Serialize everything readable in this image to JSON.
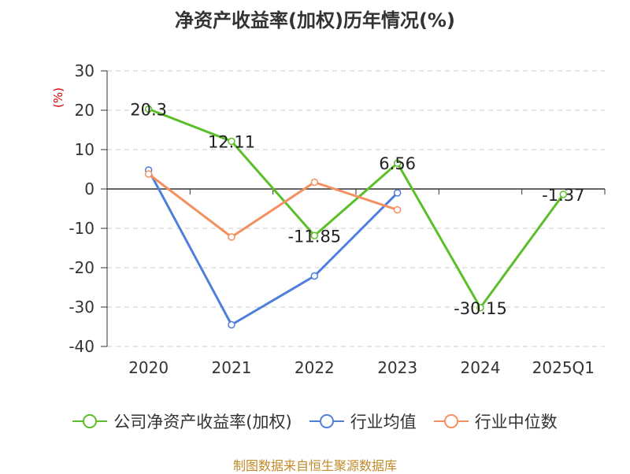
{
  "title": "净资产收益率(加权)历年情况(%)",
  "y_unit": "(%)",
  "source": "制图数据来自恒生聚源数据库",
  "colors": {
    "company": "#5bbf2a",
    "industry_avg": "#4e7fdc",
    "industry_median": "#f4905f",
    "axis": "#333333",
    "grid": "#cccccc",
    "unit": "#d40000",
    "source": "#c08a2a"
  },
  "chart_data": {
    "type": "line",
    "categories": [
      "2020",
      "2021",
      "2022",
      "2023",
      "2024",
      "2025Q1"
    ],
    "ylim": [
      -40,
      30
    ],
    "yticks": [
      30,
      20,
      10,
      0,
      -10,
      -20,
      -30,
      -40
    ],
    "ytick_labels": [
      "30",
      "20",
      "10",
      "0",
      "-10",
      "-20",
      "-30",
      "-40"
    ],
    "grid": true,
    "legend_position": "bottom",
    "series": [
      {
        "name": "公司净资产收益率(加权)",
        "values": [
          20.3,
          12.11,
          -11.85,
          6.56,
          -30.15,
          -1.37
        ],
        "labels": [
          "20.3",
          "12.11",
          "-11.85",
          "6.56",
          "-30.15",
          "-1.37"
        ]
      },
      {
        "name": "行业均值",
        "values": [
          4.8,
          -34.5,
          -22.1,
          -1.0,
          null,
          null
        ]
      },
      {
        "name": "行业中位数",
        "values": [
          3.8,
          -12.2,
          1.7,
          -5.3,
          null,
          null
        ]
      }
    ]
  }
}
